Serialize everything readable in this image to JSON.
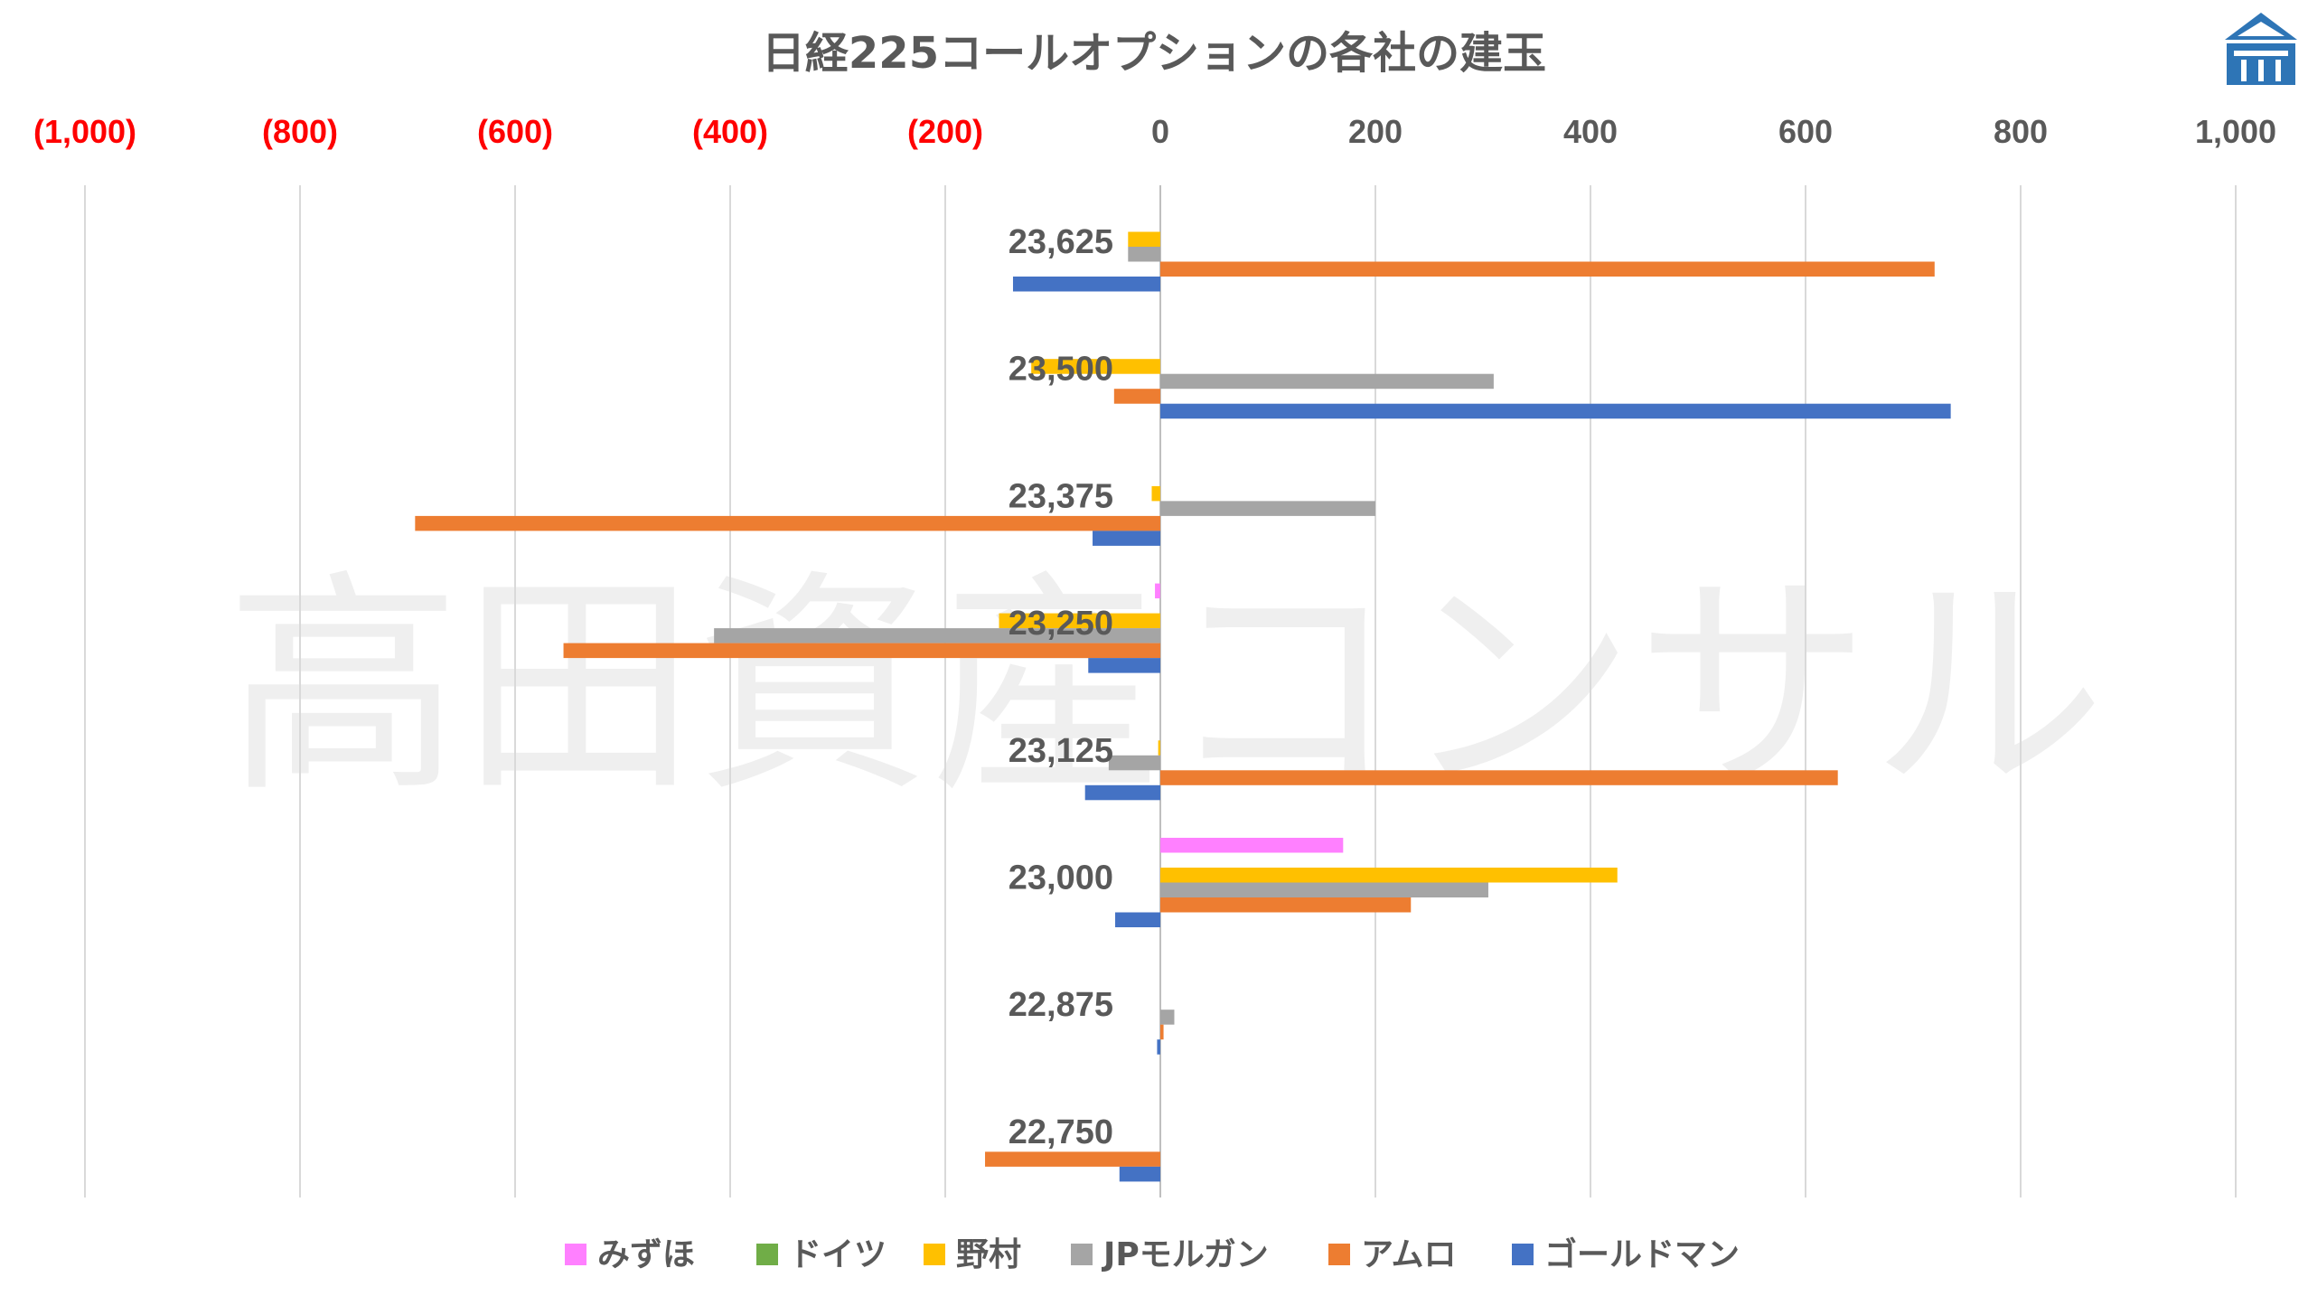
{
  "title": "日経225コールオプションの各社の建玉",
  "watermark": "高田資産コンサル",
  "logo": {
    "icon": "temple-logo-icon",
    "color": "#2e75b6"
  },
  "axis_colors": {
    "negative": "#ff0000",
    "positive": "#595959",
    "category": "#595959",
    "grid": "#d9d9d9"
  },
  "chart_data": {
    "type": "bar",
    "orientation": "horizontal",
    "title": "日経225コールオプションの各社の建玉",
    "xlim": [
      -1000,
      1000
    ],
    "x_ticks": [
      -1000,
      -800,
      -600,
      -400,
      -200,
      0,
      200,
      400,
      600,
      800,
      1000
    ],
    "x_tick_labels": [
      "(1,000)",
      "(800)",
      "(600)",
      "(400)",
      "(200)",
      "0",
      "200",
      "400",
      "600",
      "800",
      "1,000"
    ],
    "grid": true,
    "legend_position": "bottom",
    "categories": [
      "23,625",
      "23,500",
      "23,375",
      "23,250",
      "23,125",
      "23,000",
      "22,875",
      "22,750"
    ],
    "series": [
      {
        "name": "みずほ",
        "color": "#ff80ff",
        "values": [
          0,
          0,
          0,
          -5,
          0,
          170,
          0,
          0
        ]
      },
      {
        "name": "ドイツ",
        "color": "#70ad47",
        "values": [
          0,
          0,
          0,
          0,
          0,
          0,
          0,
          0
        ]
      },
      {
        "name": "野村",
        "color": "#ffc000",
        "values": [
          -30,
          -120,
          -8,
          -150,
          -2,
          425,
          0,
          0
        ]
      },
      {
        "name": "JPモルガン",
        "color": "#a5a5a5",
        "values": [
          -30,
          310,
          200,
          -415,
          -48,
          305,
          13,
          0
        ]
      },
      {
        "name": "アムロ",
        "color": "#ed7d31",
        "values": [
          720,
          -43,
          -693,
          -555,
          630,
          233,
          3,
          -163
        ]
      },
      {
        "name": "ゴールドマン",
        "color": "#4472c4",
        "values": [
          -137,
          735,
          -63,
          -67,
          -70,
          -42,
          -3,
          -38
        ]
      }
    ]
  }
}
